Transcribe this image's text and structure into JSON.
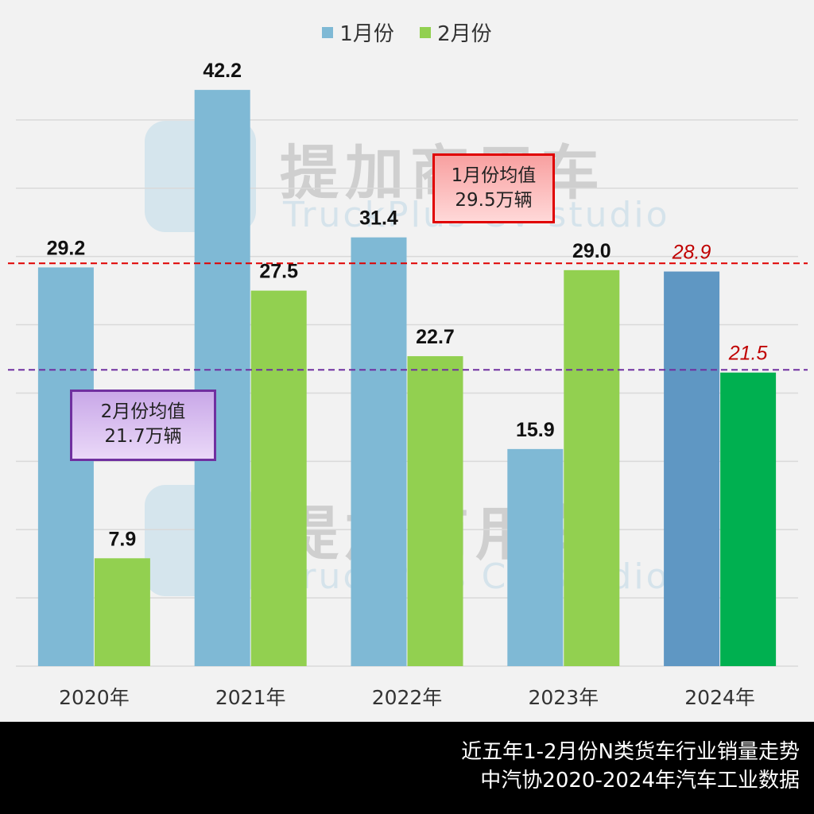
{
  "chart_data": {
    "type": "bar",
    "categories": [
      "2020年",
      "2021年",
      "2022年",
      "2023年",
      "2024年"
    ],
    "series": [
      {
        "name": "1月份",
        "values": [
          29.2,
          42.2,
          31.4,
          15.9,
          28.9
        ],
        "color": "#7fb9d5",
        "highlight_color": "#5f97c3"
      },
      {
        "name": "2月份",
        "values": [
          7.9,
          27.5,
          22.7,
          29.0,
          21.5
        ],
        "color": "#92d050",
        "highlight_color": "#00b050"
      }
    ],
    "data_labels": [
      [
        "29.2",
        "42.2",
        "31.4",
        "15.9",
        "28.9"
      ],
      [
        "7.9",
        "27.5",
        "22.7",
        "29.0",
        "21.5"
      ]
    ],
    "ylim": [
      0,
      45
    ],
    "grid": true,
    "legend_position": "top",
    "reference_lines": [
      {
        "label_line1": "1月份均值",
        "label_line2": "29.5万辆",
        "value": 29.5,
        "color": "#e00000"
      },
      {
        "label_line1": "2月份均值",
        "label_line2": "21.7万辆",
        "value": 21.7,
        "color": "#7030a0"
      }
    ],
    "highlight_label_color": "#c00000"
  },
  "watermark": {
    "cn": "提加商用车",
    "en": "TruckPlus CV studio"
  },
  "footer": {
    "line1": "近五年1-2月份N类货车行业销量走势",
    "line2": "中汽协2020-2024年汽车工业数据"
  }
}
